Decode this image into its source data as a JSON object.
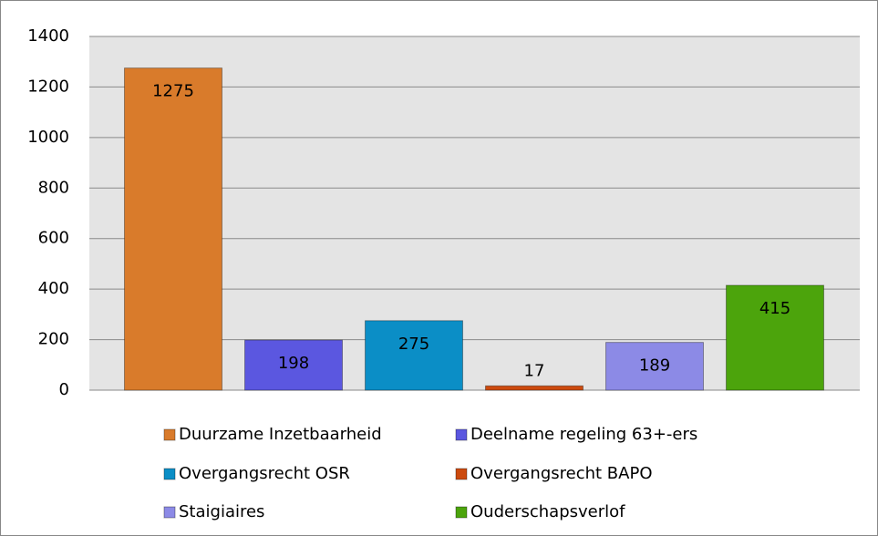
{
  "chart_data": {
    "type": "bar",
    "series": [
      {
        "name": "Duurzame Inzetbaarheid",
        "color": "#d97b2b",
        "values": [
          1275
        ]
      },
      {
        "name": "Deelname regeling 63+-ers",
        "color": "#5b57e0",
        "values": [
          198
        ]
      },
      {
        "name": "Overgangsrecht OSR",
        "color": "#0b8ec6",
        "values": [
          275
        ]
      },
      {
        "name": "Overgangsrecht BAPO",
        "color": "#cc4a0e",
        "values": [
          17
        ]
      },
      {
        "name": "Staigiaires",
        "color": "#8c8ae6",
        "values": [
          189
        ]
      },
      {
        "name": "Ouderschapsverlof",
        "color": "#4ca40c",
        "values": [
          415
        ]
      }
    ],
    "ylim": [
      0,
      1400
    ],
    "yticks": [
      0,
      200,
      400,
      600,
      800,
      1000,
      1200,
      1400
    ],
    "grid": true,
    "legend": "bottom"
  }
}
